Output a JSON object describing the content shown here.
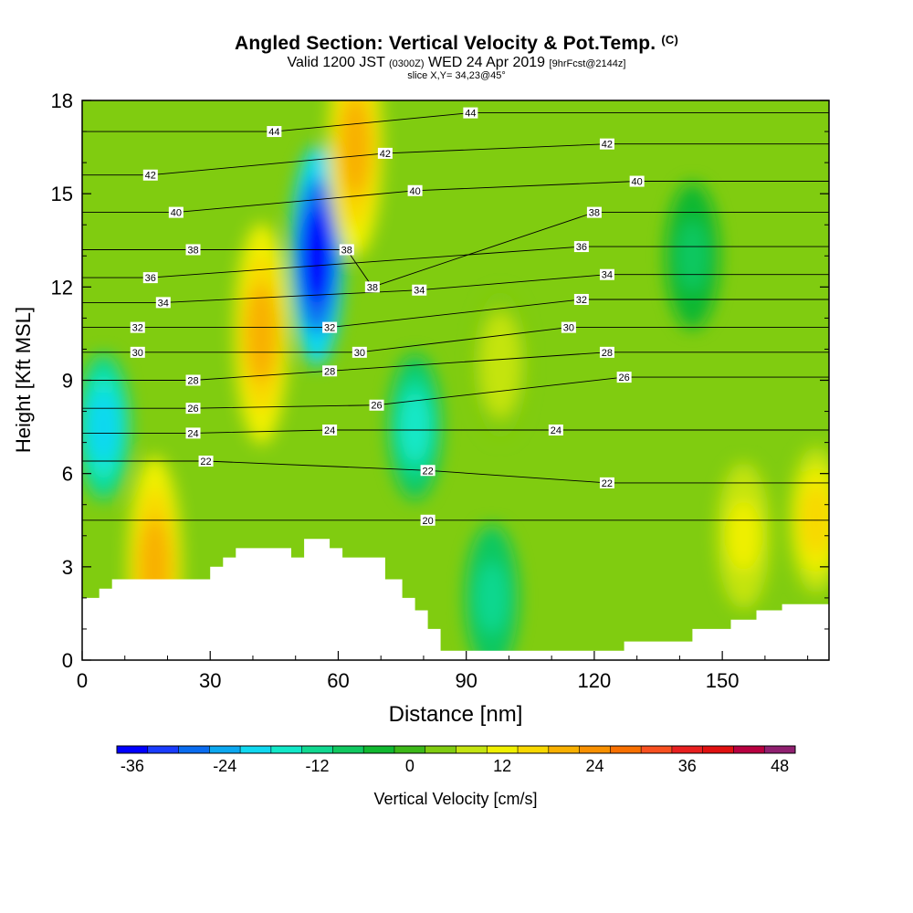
{
  "title": {
    "main": "Angled Section: Vertical Velocity & Pot.Temp.",
    "copyright": "(C)",
    "valid_prefix": "Valid 1200 JST",
    "valid_utc": "(0300Z)",
    "valid_date": "WED 24 Apr 2019",
    "forecast": "[9hrFcst@2144z]",
    "slice": "slice X,Y= 34,23@45°"
  },
  "colorbar": {
    "label": "Vertical Velocity [cm/s]",
    "tick_labels": [
      "-36",
      "-24",
      "-12",
      "0",
      "12",
      "24",
      "36",
      "48"
    ],
    "tick_values": [
      -36,
      -24,
      -12,
      0,
      12,
      24,
      36,
      48
    ],
    "min": -38,
    "max": 50,
    "step": 4,
    "colors": [
      "#0000ff",
      "#1a3cff",
      "#0a6cf0",
      "#0ca8f0",
      "#10d8f0",
      "#12e8c8",
      "#10d890",
      "#10c860",
      "#10b830",
      "#3cb818",
      "#80cc10",
      "#c4e410",
      "#f0f000",
      "#f8d800",
      "#f8b000",
      "#f89000",
      "#f87000",
      "#f85020",
      "#e82020",
      "#e01010",
      "#b80040",
      "#902070"
    ]
  },
  "chart_data": {
    "type": "heatmap",
    "title": "Angled Section: Vertical Velocity & Pot.Temp.",
    "xlabel": "Distance [nm]",
    "ylabel": "Height [Kft MSL]",
    "xlim": [
      0,
      175
    ],
    "ylim": [
      0,
      18
    ],
    "x_ticks": [
      0,
      30,
      60,
      90,
      120,
      150
    ],
    "y_ticks": [
      0,
      3,
      6,
      9,
      12,
      15,
      18
    ],
    "x_tick_labels": [
      "0",
      "30",
      "60",
      "90",
      "120",
      "150"
    ],
    "y_tick_labels": [
      "0",
      "3",
      "6",
      "9",
      "12",
      "15",
      "18"
    ],
    "filled_field": "Vertical Velocity [cm/s]",
    "contour_field": "Pot.Temp.",
    "vertical_velocity_features": [
      {
        "center_x": 5,
        "center_y": 7.5,
        "value": -20
      },
      {
        "center_x": 17,
        "center_y": 3.0,
        "value": 20
      },
      {
        "center_x": 42,
        "center_y": 10.5,
        "value": 22
      },
      {
        "center_x": 55,
        "center_y": 13.0,
        "value": -36
      },
      {
        "center_x": 64,
        "center_y": 16.5,
        "value": 22
      },
      {
        "center_x": 78,
        "center_y": 7.5,
        "value": -16
      },
      {
        "center_x": 96,
        "center_y": 2.0,
        "value": -12
      },
      {
        "center_x": 98,
        "center_y": 9.5,
        "value": 10
      },
      {
        "center_x": 143,
        "center_y": 13.0,
        "value": -8
      },
      {
        "center_x": 155,
        "center_y": 4.0,
        "value": 12
      },
      {
        "center_x": 172,
        "center_y": 4.5,
        "value": 16
      }
    ],
    "terrain": [
      [
        0,
        2.0
      ],
      [
        4,
        2.0
      ],
      [
        4,
        2.3
      ],
      [
        7,
        2.3
      ],
      [
        7,
        2.6
      ],
      [
        30,
        2.6
      ],
      [
        30,
        3.0
      ],
      [
        33,
        3.0
      ],
      [
        33,
        3.3
      ],
      [
        36,
        3.3
      ],
      [
        36,
        3.6
      ],
      [
        49,
        3.6
      ],
      [
        49,
        3.3
      ],
      [
        52,
        3.3
      ],
      [
        52,
        3.9
      ],
      [
        58,
        3.9
      ],
      [
        58,
        3.6
      ],
      [
        61,
        3.6
      ],
      [
        61,
        3.3
      ],
      [
        71,
        3.3
      ],
      [
        71,
        2.6
      ],
      [
        75,
        2.6
      ],
      [
        75,
        2.0
      ],
      [
        78,
        2.0
      ],
      [
        78,
        1.6
      ],
      [
        81,
        1.6
      ],
      [
        81,
        1.0
      ],
      [
        84,
        1.0
      ],
      [
        84,
        0.3
      ],
      [
        127,
        0.3
      ],
      [
        127,
        0.6
      ],
      [
        143,
        0.6
      ],
      [
        143,
        1.0
      ],
      [
        152,
        1.0
      ],
      [
        152,
        1.3
      ],
      [
        158,
        1.3
      ],
      [
        158,
        1.6
      ],
      [
        164,
        1.6
      ],
      [
        164,
        1.8
      ],
      [
        175,
        1.8
      ]
    ],
    "pot_temp_labels": [
      {
        "text": "44",
        "x": 45,
        "y": 17.0
      },
      {
        "text": "44",
        "x": 91,
        "y": 17.6
      },
      {
        "text": "42",
        "x": 16,
        "y": 15.6
      },
      {
        "text": "42",
        "x": 71,
        "y": 16.3
      },
      {
        "text": "42",
        "x": 123,
        "y": 16.6
      },
      {
        "text": "40",
        "x": 22,
        "y": 14.4
      },
      {
        "text": "40",
        "x": 78,
        "y": 15.1
      },
      {
        "text": "40",
        "x": 130,
        "y": 15.4
      },
      {
        "text": "38",
        "x": 26,
        "y": 13.2
      },
      {
        "text": "38",
        "x": 62,
        "y": 13.2
      },
      {
        "text": "38",
        "x": 68,
        "y": 12.0
      },
      {
        "text": "38",
        "x": 120,
        "y": 14.4
      },
      {
        "text": "36",
        "x": 16,
        "y": 12.3
      },
      {
        "text": "36",
        "x": 117,
        "y": 13.3
      },
      {
        "text": "34",
        "x": 19,
        "y": 11.5
      },
      {
        "text": "34",
        "x": 79,
        "y": 11.9
      },
      {
        "text": "34",
        "x": 123,
        "y": 12.4
      },
      {
        "text": "32",
        "x": 13,
        "y": 10.7
      },
      {
        "text": "32",
        "x": 58,
        "y": 10.7
      },
      {
        "text": "32",
        "x": 117,
        "y": 11.6
      },
      {
        "text": "30",
        "x": 13,
        "y": 9.9
      },
      {
        "text": "30",
        "x": 65,
        "y": 9.9
      },
      {
        "text": "30",
        "x": 114,
        "y": 10.7
      },
      {
        "text": "28",
        "x": 26,
        "y": 9.0
      },
      {
        "text": "28",
        "x": 58,
        "y": 9.3
      },
      {
        "text": "28",
        "x": 123,
        "y": 9.9
      },
      {
        "text": "26",
        "x": 26,
        "y": 8.1
      },
      {
        "text": "26",
        "x": 69,
        "y": 8.2
      },
      {
        "text": "26",
        "x": 127,
        "y": 9.1
      },
      {
        "text": "24",
        "x": 26,
        "y": 7.3
      },
      {
        "text": "24",
        "x": 58,
        "y": 7.4
      },
      {
        "text": "24",
        "x": 111,
        "y": 7.4
      },
      {
        "text": "22",
        "x": 29,
        "y": 6.4
      },
      {
        "text": "22",
        "x": 81,
        "y": 6.1
      },
      {
        "text": "22",
        "x": 123,
        "y": 5.7
      },
      {
        "text": "20",
        "x": 81,
        "y": 4.5
      }
    ]
  }
}
